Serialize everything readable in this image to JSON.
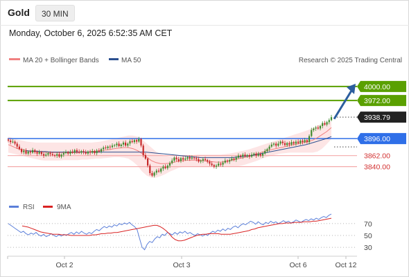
{
  "header": {
    "instrument": "Gold",
    "timeframe": "30 MIN",
    "datetime": "Monday, October 6, 2025 6:52:35 AM CET"
  },
  "legend": {
    "ma20": "MA 20 + Bollinger Bands",
    "ma50": "MA 50",
    "source": "Research © 2025 Trading Central",
    "rsi": "RSI",
    "rsi_ma": "9MA"
  },
  "colors": {
    "ma20": "#f08080",
    "ma50": "#2b4f8f",
    "bollinger_fill": "#fde2e2",
    "target": "#5aa000",
    "pivot": "#2f6fe8",
    "support": "#f4a9a9",
    "support_label": "#d23030",
    "candle_up": "#3f8b2e",
    "candle_down": "#c62828",
    "rsi": "#5b7fd9",
    "rsi_ma": "#d92323",
    "last_price_bg": "#222222",
    "arrow": "#2c5e9e"
  },
  "chart_data": [
    {
      "type": "candlestick",
      "title": "Gold",
      "timeframe": "30 MIN",
      "ylim": [
        3780,
        4040
      ],
      "x_ticks": [
        "Oct 2",
        "Oct 3",
        "Oct 6",
        "Oct 12"
      ],
      "last_price": 3938.79,
      "levels": [
        {
          "value": 4000.0,
          "label": "4000.00",
          "kind": "target"
        },
        {
          "value": 3972.0,
          "label": "3972.00",
          "kind": "target"
        },
        {
          "value": 3896.0,
          "label": "3896.00",
          "kind": "pivot"
        },
        {
          "value": 3862.0,
          "label": "3862.00",
          "kind": "support"
        },
        {
          "value": 3840.0,
          "label": "3840.00",
          "kind": "support"
        }
      ],
      "last_price_label": "3938.79",
      "forecast_arrow": {
        "from": 3938,
        "to": 4000
      },
      "closes": [
        3892,
        3889,
        3890,
        3886,
        3880,
        3875,
        3869,
        3872,
        3866,
        3870,
        3868,
        3873,
        3869,
        3866,
        3869,
        3865,
        3862,
        3864,
        3867,
        3865,
        3863,
        3862,
        3865,
        3860,
        3864,
        3867,
        3869,
        3866,
        3870,
        3868,
        3873,
        3870,
        3868,
        3871,
        3869,
        3866,
        3870,
        3868,
        3871,
        3867,
        3872,
        3870,
        3875,
        3878,
        3877,
        3880,
        3879,
        3882,
        3883,
        3886,
        3881,
        3884,
        3888,
        3882,
        3886,
        3891,
        3889,
        3893,
        3890,
        3895,
        3882,
        3863,
        3856,
        3842,
        3827,
        3822,
        3828,
        3832,
        3830,
        3836,
        3840,
        3837,
        3842,
        3847,
        3852,
        3858,
        3855,
        3851,
        3857,
        3854,
        3856,
        3859,
        3856,
        3858,
        3857,
        3855,
        3850,
        3852,
        3855,
        3853,
        3850,
        3846,
        3843,
        3840,
        3842,
        3846,
        3844,
        3848,
        3852,
        3850,
        3853,
        3856,
        3854,
        3858,
        3862,
        3860,
        3864,
        3861,
        3863,
        3860,
        3864,
        3866,
        3862,
        3865,
        3862,
        3866,
        3871,
        3875,
        3880,
        3884,
        3886,
        3882,
        3886,
        3890,
        3887,
        3883,
        3887,
        3884,
        3889,
        3886,
        3890,
        3887,
        3892,
        3889,
        3893,
        3889,
        3901,
        3913,
        3916,
        3918,
        3916,
        3921,
        3927,
        3924,
        3929,
        3933,
        3938.79
      ],
      "ma20": [
        3884,
        3880,
        3876,
        3874,
        3872,
        3871,
        3870,
        3869,
        3869,
        3868,
        3868,
        3868,
        3868,
        3868,
        3868,
        3868,
        3869,
        3869,
        3870,
        3871,
        3872,
        3873,
        3874,
        3876,
        3877,
        3878,
        3878,
        3876,
        3872,
        3866,
        3859,
        3852,
        3848,
        3846,
        3846,
        3847,
        3849,
        3851,
        3852,
        3853,
        3853,
        3853,
        3852,
        3851,
        3850,
        3849,
        3849,
        3850,
        3852,
        3854,
        3856,
        3858,
        3860,
        3863,
        3866,
        3869,
        3872,
        3874,
        3876,
        3878,
        3880,
        3882,
        3884,
        3886,
        3888,
        3890,
        3893,
        3898,
        3904,
        3910,
        3918
      ],
      "ma50": [
        3872,
        3871,
        3871,
        3870,
        3870,
        3869,
        3869,
        3869,
        3869,
        3869,
        3869,
        3869,
        3869,
        3869,
        3869,
        3869,
        3869,
        3869,
        3869,
        3869,
        3869,
        3869,
        3869,
        3869,
        3869,
        3868,
        3867,
        3866,
        3865,
        3864,
        3863,
        3862,
        3861,
        3860,
        3859,
        3858,
        3858,
        3858,
        3858,
        3858,
        3858,
        3858,
        3859,
        3860,
        3861,
        3862,
        3864,
        3866,
        3868,
        3870,
        3872,
        3874,
        3876,
        3878,
        3880,
        3882,
        3884,
        3887,
        3890,
        3893,
        3896,
        3900
      ],
      "bollinger_upper": [
        3900,
        3897,
        3894,
        3892,
        3890,
        3889,
        3888,
        3888,
        3888,
        3888,
        3888,
        3888,
        3888,
        3888,
        3888,
        3888,
        3888,
        3888,
        3888,
        3889,
        3890,
        3892,
        3894,
        3896,
        3898,
        3900,
        3902,
        3902,
        3900,
        3894,
        3886,
        3878,
        3870,
        3865,
        3862,
        3860,
        3860,
        3860,
        3861,
        3862,
        3863,
        3864,
        3864,
        3864,
        3864,
        3864,
        3864,
        3865,
        3866,
        3868,
        3870,
        3872,
        3874,
        3877,
        3880,
        3883,
        3886,
        3889,
        3892,
        3895,
        3898,
        3901,
        3904,
        3907,
        3910,
        3913,
        3917,
        3921,
        3925,
        3928,
        3930
      ],
      "bollinger_lower": [
        3868,
        3866,
        3864,
        3862,
        3859,
        3857,
        3855,
        3853,
        3852,
        3852,
        3852,
        3852,
        3853,
        3853,
        3853,
        3853,
        3854,
        3854,
        3855,
        3856,
        3856,
        3857,
        3858,
        3859,
        3859,
        3858,
        3856,
        3850,
        3842,
        3830,
        3822,
        3818,
        3818,
        3821,
        3825,
        3830,
        3834,
        3838,
        3840,
        3840,
        3840,
        3840,
        3840,
        3840,
        3840,
        3840,
        3840,
        3840,
        3840,
        3840,
        3841,
        3843,
        3846,
        3849,
        3852,
        3856,
        3859,
        3862,
        3864,
        3866,
        3867,
        3868,
        3868,
        3868,
        3868,
        3868,
        3868,
        3870,
        3876,
        3885,
        3895
      ]
    },
    {
      "type": "line",
      "title": "RSI",
      "series": [
        {
          "name": "RSI"
        },
        {
          "name": "9MA"
        }
      ],
      "ylim": [
        15,
        85
      ],
      "y_ticks": [
        70,
        50,
        30
      ],
      "rsi": [
        70,
        67,
        64,
        61,
        58,
        55,
        57,
        53,
        51,
        54,
        52,
        55,
        51,
        49,
        52,
        48,
        50,
        53,
        50,
        48,
        51,
        49,
        52,
        50,
        53,
        55,
        52,
        56,
        53,
        57,
        54,
        52,
        55,
        53,
        57,
        60,
        58,
        62,
        65,
        63,
        66,
        64,
        68,
        66,
        70,
        68,
        71,
        69,
        72,
        68,
        65,
        60,
        45,
        30,
        26,
        35,
        40,
        38,
        44,
        48,
        46,
        52,
        50,
        55,
        53,
        51,
        55,
        52,
        56,
        54,
        57,
        53,
        55,
        52,
        50,
        53,
        51,
        49,
        52,
        50,
        54,
        57,
        55,
        59,
        57,
        61,
        58,
        62,
        60,
        64,
        66,
        63,
        67,
        70,
        68,
        71,
        74,
        72,
        69,
        73,
        70,
        68,
        72,
        70,
        74,
        71,
        73,
        70,
        72,
        75,
        72,
        74,
        71,
        73,
        76,
        74,
        72,
        75,
        77,
        75,
        78,
        76,
        79,
        77,
        80,
        82,
        80,
        84,
        86
      ],
      "ma9": [
        66,
        65,
        64,
        62,
        60,
        58,
        56,
        55,
        54,
        53,
        52,
        52,
        52,
        51,
        51,
        51,
        50,
        50,
        50,
        50,
        50,
        50,
        50,
        51,
        51,
        52,
        53,
        53,
        54,
        54,
        55,
        55,
        56,
        57,
        58,
        59,
        60,
        61,
        62,
        63,
        64,
        65,
        66,
        67,
        67,
        65,
        62,
        58,
        53,
        47,
        43,
        41,
        41,
        42,
        44,
        46,
        48,
        50,
        51,
        52,
        52,
        53,
        53,
        53,
        53,
        52,
        52,
        52,
        52,
        53,
        54,
        55,
        56,
        57,
        58,
        60,
        61,
        63,
        64,
        65,
        66,
        67,
        68,
        69,
        70,
        70,
        71,
        71,
        71,
        72,
        72,
        72,
        73,
        73,
        73,
        74,
        74,
        75,
        76,
        77,
        78,
        79
      ]
    }
  ]
}
